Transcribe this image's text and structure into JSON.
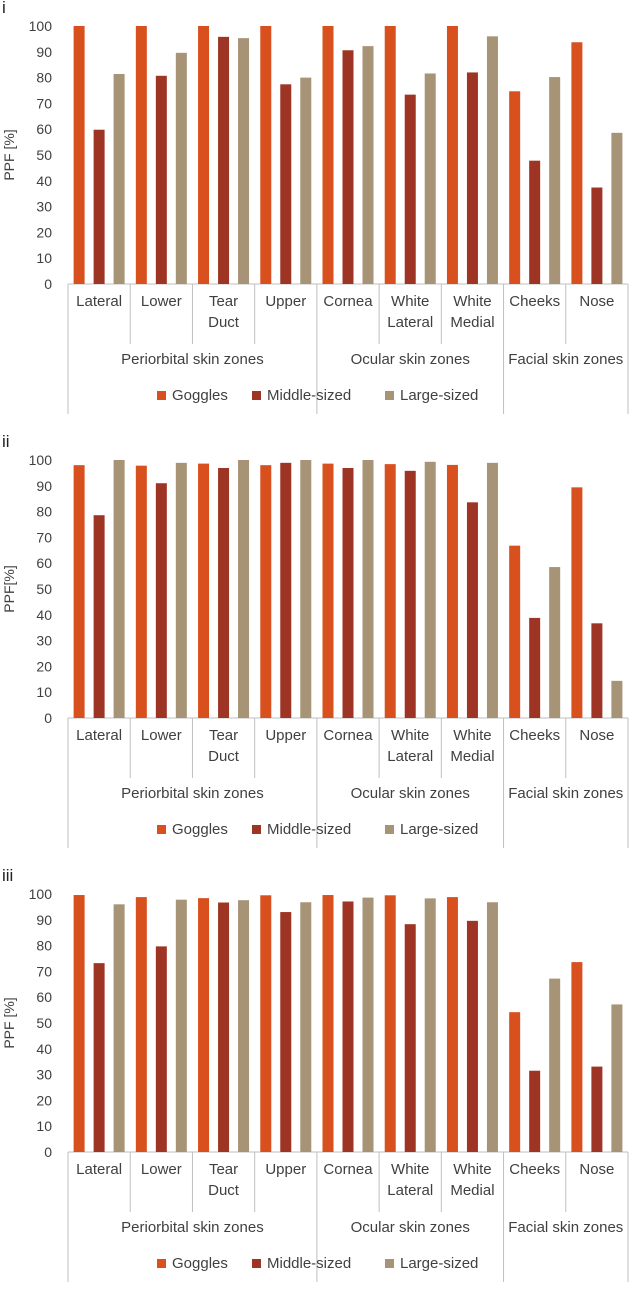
{
  "colors": {
    "goggles": "#D9501F",
    "middle": "#9E3524",
    "large": "#A79376",
    "grid": "#D9D9D9",
    "axis": "#BFBFBF"
  },
  "legend": [
    "Goggles",
    "Middle-sized",
    "Large-sized"
  ],
  "chart_data": [
    {
      "panel": "i",
      "type": "bar",
      "ylabel": "PPF [%]",
      "ylim": [
        0,
        100
      ],
      "yticks": [
        0,
        10,
        20,
        30,
        40,
        50,
        60,
        70,
        80,
        90,
        100
      ],
      "categories": [
        [
          "Lateral"
        ],
        [
          "Lower"
        ],
        [
          "Tear",
          "Duct"
        ],
        [
          "Upper"
        ],
        [
          "Cornea"
        ],
        [
          "White",
          "Lateral"
        ],
        [
          "White",
          "Medial"
        ],
        [
          "Cheeks"
        ],
        [
          "Nose"
        ]
      ],
      "groups": [
        {
          "label": "Periorbital skin zones",
          "start": 0,
          "end": 3
        },
        {
          "label": "Ocular skin zones",
          "start": 4,
          "end": 6
        },
        {
          "label": "Facial skin zones",
          "start": 7,
          "end": 8
        }
      ],
      "series": [
        {
          "name": "Goggles",
          "values": [
            100,
            100,
            100,
            100,
            100,
            100,
            100,
            74.7,
            93.7
          ]
        },
        {
          "name": "Middle-sized",
          "values": [
            59.8,
            80.7,
            95.8,
            77.4,
            90.6,
            73.4,
            82.0,
            47.8,
            37.4
          ]
        },
        {
          "name": "Large-sized",
          "values": [
            81.4,
            89.6,
            95.3,
            80.0,
            92.2,
            81.6,
            96.0,
            80.2,
            58.6
          ]
        }
      ]
    },
    {
      "panel": "ii",
      "type": "bar",
      "ylabel": "PPF[%]",
      "ylim": [
        0,
        100
      ],
      "yticks": [
        0,
        10,
        20,
        30,
        40,
        50,
        60,
        70,
        80,
        90,
        100
      ],
      "categories": [
        [
          "Lateral"
        ],
        [
          "Lower"
        ],
        [
          "Tear",
          "Duct"
        ],
        [
          "Upper"
        ],
        [
          "Cornea"
        ],
        [
          "White",
          "Lateral"
        ],
        [
          "White",
          "Medial"
        ],
        [
          "Cheeks"
        ],
        [
          "Nose"
        ]
      ],
      "groups": [
        {
          "label": "Periorbital skin zones",
          "start": 0,
          "end": 3
        },
        {
          "label": "Ocular skin zones",
          "start": 4,
          "end": 6
        },
        {
          "label": "Facial skin zones",
          "start": 7,
          "end": 8
        }
      ],
      "series": [
        {
          "name": "Goggles",
          "values": [
            98.0,
            97.8,
            98.6,
            98.0,
            98.6,
            98.4,
            98.1,
            66.8,
            89.4
          ]
        },
        {
          "name": "Middle-sized",
          "values": [
            78.6,
            91.0,
            96.9,
            98.9,
            96.9,
            95.8,
            83.6,
            38.8,
            36.7
          ]
        },
        {
          "name": "Large-sized",
          "values": [
            100,
            98.9,
            100,
            100,
            100,
            99.3,
            98.9,
            58.5,
            14.4
          ]
        }
      ]
    },
    {
      "panel": "iii",
      "type": "bar",
      "ylabel": "PPF [%]",
      "ylim": [
        0,
        100
      ],
      "yticks": [
        0,
        10,
        20,
        30,
        40,
        50,
        60,
        70,
        80,
        90,
        100
      ],
      "categories": [
        [
          "Lateral"
        ],
        [
          "Lower"
        ],
        [
          "Tear",
          "Duct"
        ],
        [
          "Upper"
        ],
        [
          "Cornea"
        ],
        [
          "White",
          "Lateral"
        ],
        [
          "White",
          "Medial"
        ],
        [
          "Cheeks"
        ],
        [
          "Nose"
        ]
      ],
      "groups": [
        {
          "label": "Periorbital skin zones",
          "start": 0,
          "end": 3
        },
        {
          "label": "Ocular skin zones",
          "start": 4,
          "end": 6
        },
        {
          "label": "Facial skin zones",
          "start": 7,
          "end": 8
        }
      ],
      "series": [
        {
          "name": "Goggles",
          "values": [
            99.6,
            98.8,
            98.4,
            99.5,
            99.6,
            99.5,
            98.8,
            54.2,
            73.6
          ]
        },
        {
          "name": "Middle-sized",
          "values": [
            73.2,
            79.7,
            96.7,
            93.0,
            97.1,
            88.3,
            89.6,
            31.5,
            33.1
          ]
        },
        {
          "name": "Large-sized",
          "values": [
            96.0,
            97.8,
            97.6,
            96.8,
            98.6,
            98.3,
            96.8,
            67.2,
            57.2
          ]
        }
      ]
    }
  ]
}
